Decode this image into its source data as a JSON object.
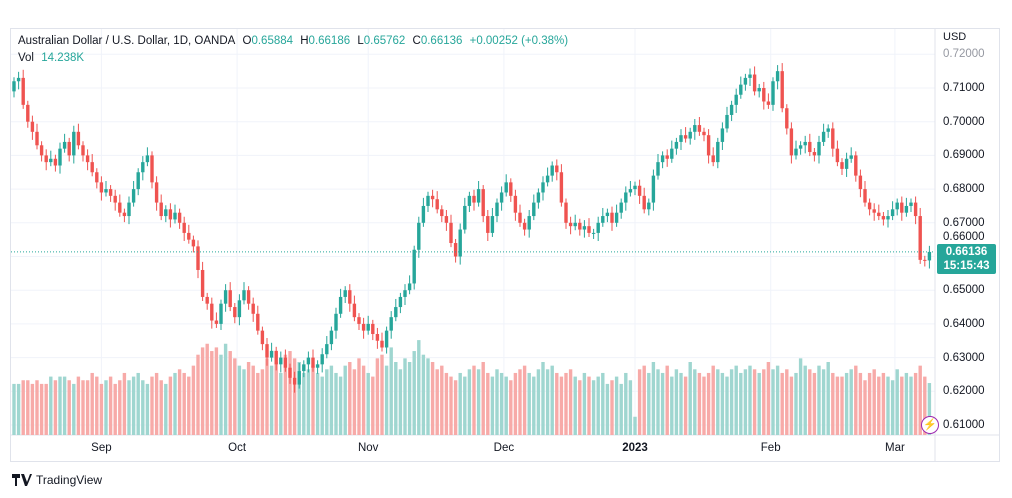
{
  "legend": {
    "symbol": "Australian Dollar / U.S. Dollar, 1D, OANDA",
    "open_label": "O",
    "open": "0.65884",
    "high_label": "H",
    "high": "0.66186",
    "low_label": "L",
    "low": "0.65762",
    "close_label": "C",
    "close": "0.66136",
    "change": "+0.00252 (+0.38%)",
    "vol_label": "Vol",
    "vol": "14.238K"
  },
  "currency": "USD",
  "last_price": {
    "price": "0.66136",
    "countdown": "15:15:43"
  },
  "footer_logo": "TradingView",
  "colors": {
    "up": "#26a69a",
    "down": "#ef5350",
    "up_vol": "#9fd6d0",
    "down_vol": "#f7aaa8",
    "grid": "#f0f3fa"
  },
  "chart_data": {
    "type": "candlestick",
    "title": "Australian Dollar / U.S. Dollar, 1D, OANDA",
    "ylim": [
      0.605,
      0.72
    ],
    "y_ticks": [
      "0.72000",
      "0.71000",
      "0.70000",
      "0.69000",
      "0.68000",
      "0.67000",
      "0.66000",
      "0.65000",
      "0.64000",
      "0.63000",
      "0.62000",
      "0.61000"
    ],
    "y_tick_values": [
      0.72,
      0.71,
      0.7,
      0.69,
      0.68,
      0.67,
      0.66,
      0.65,
      0.64,
      0.63,
      0.62,
      0.61
    ],
    "x_ticks": [
      {
        "label": "Sep",
        "index": 19
      },
      {
        "label": "Oct",
        "index": 48.5
      },
      {
        "label": "Nov",
        "index": 77
      },
      {
        "label": "Dec",
        "index": 106.5
      },
      {
        "label": "2023",
        "index": 135,
        "bold": true
      },
      {
        "label": "Feb",
        "index": 164.5
      },
      {
        "label": "Mar",
        "index": 191.5
      }
    ],
    "first_open": 0.709,
    "closes": [
      0.712,
      0.713,
      0.705,
      0.7,
      0.697,
      0.693,
      0.69,
      0.688,
      0.689,
      0.687,
      0.692,
      0.694,
      0.69,
      0.697,
      0.693,
      0.69,
      0.688,
      0.685,
      0.682,
      0.679,
      0.68,
      0.678,
      0.676,
      0.673,
      0.672,
      0.676,
      0.68,
      0.685,
      0.688,
      0.69,
      0.682,
      0.676,
      0.672,
      0.674,
      0.671,
      0.673,
      0.67,
      0.667,
      0.665,
      0.663,
      0.656,
      0.648,
      0.646,
      0.641,
      0.64,
      0.646,
      0.65,
      0.645,
      0.642,
      0.647,
      0.65,
      0.646,
      0.643,
      0.638,
      0.634,
      0.63,
      0.632,
      0.628,
      0.63,
      0.627,
      0.624,
      0.622,
      0.626,
      0.628,
      0.63,
      0.627,
      0.628,
      0.631,
      0.634,
      0.638,
      0.643,
      0.648,
      0.65,
      0.646,
      0.642,
      0.64,
      0.638,
      0.64,
      0.637,
      0.635,
      0.633,
      0.638,
      0.642,
      0.645,
      0.648,
      0.65,
      0.652,
      0.662,
      0.67,
      0.675,
      0.678,
      0.677,
      0.674,
      0.672,
      0.67,
      0.664,
      0.66,
      0.668,
      0.675,
      0.678,
      0.676,
      0.68,
      0.672,
      0.667,
      0.672,
      0.676,
      0.679,
      0.682,
      0.678,
      0.673,
      0.67,
      0.668,
      0.672,
      0.676,
      0.679,
      0.682,
      0.684,
      0.687,
      0.685,
      0.676,
      0.67,
      0.669,
      0.67,
      0.668,
      0.669,
      0.667,
      0.667,
      0.67,
      0.672,
      0.673,
      0.67,
      0.673,
      0.676,
      0.679,
      0.68,
      0.681,
      0.678,
      0.674,
      0.676,
      0.684,
      0.688,
      0.69,
      0.689,
      0.692,
      0.694,
      0.696,
      0.695,
      0.697,
      0.699,
      0.697,
      0.696,
      0.69,
      0.688,
      0.694,
      0.698,
      0.702,
      0.705,
      0.708,
      0.711,
      0.713,
      0.714,
      0.709,
      0.71,
      0.706,
      0.705,
      0.712,
      0.715,
      0.704,
      0.698,
      0.69,
      0.692,
      0.693,
      0.694,
      0.691,
      0.69,
      0.694,
      0.697,
      0.698,
      0.692,
      0.688,
      0.686,
      0.689,
      0.69,
      0.684,
      0.68,
      0.676,
      0.674,
      0.673,
      0.672,
      0.671,
      0.672,
      0.674,
      0.676,
      0.673,
      0.675,
      0.676,
      0.672,
      0.659,
      0.65884,
      0.66136
    ],
    "volumes_k": [
      14,
      14,
      15,
      15,
      14,
      15,
      14,
      14,
      16,
      15,
      16,
      16,
      15,
      14,
      16,
      15,
      15,
      17,
      16,
      14,
      15,
      16,
      14,
      15,
      17,
      15,
      16,
      17,
      15,
      14,
      16,
      17,
      15,
      14,
      16,
      17,
      18,
      17,
      16,
      19,
      22,
      24,
      25,
      23,
      24,
      22,
      25,
      23,
      21,
      19,
      18,
      20,
      19,
      17,
      18,
      21,
      19,
      20,
      17,
      22,
      23,
      21,
      20,
      17,
      18,
      19,
      17,
      16,
      18,
      19,
      17,
      16,
      19,
      20,
      18,
      21,
      19,
      17,
      16,
      21,
      22,
      19,
      24,
      20,
      18,
      21,
      20,
      23,
      26,
      22,
      21,
      20,
      18,
      19,
      17,
      16,
      15,
      17,
      16,
      18,
      19,
      18,
      20,
      17,
      16,
      18,
      17,
      16,
      15,
      17,
      18,
      19,
      17,
      16,
      18,
      20,
      18,
      19,
      17,
      16,
      17,
      18,
      16,
      15,
      17,
      16,
      15,
      16,
      17,
      14,
      15,
      16,
      14,
      17,
      15,
      5,
      18,
      19,
      17,
      20,
      18,
      17,
      19,
      16,
      18,
      17,
      16,
      20,
      18,
      17,
      16,
      17,
      19,
      18,
      17,
      16,
      18,
      19,
      17,
      18,
      19,
      18,
      17,
      18,
      20,
      18,
      19,
      17,
      18,
      16,
      17,
      21,
      19,
      18,
      17,
      19,
      18,
      20,
      17,
      16,
      16,
      17,
      18,
      19,
      17,
      15,
      17,
      18,
      16,
      17,
      16,
      15,
      18,
      16,
      17,
      16,
      17,
      19,
      16,
      14.238
    ]
  }
}
